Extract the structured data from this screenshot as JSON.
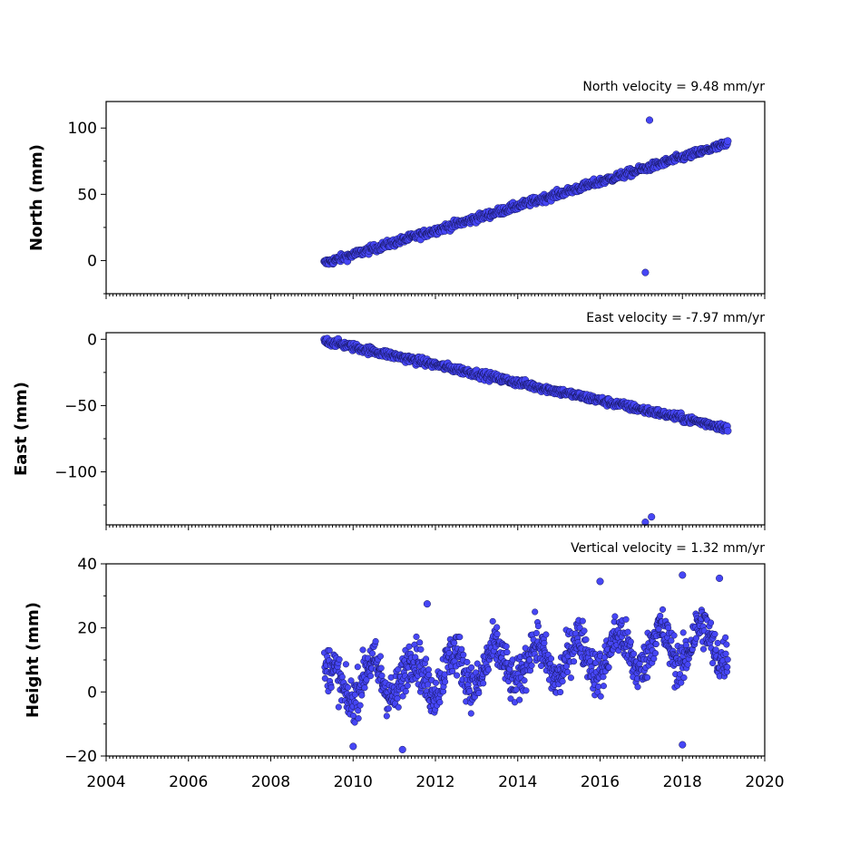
{
  "chart_data": [
    {
      "type": "scatter",
      "title": "North velocity = 9.48 mm/yr",
      "ylabel": "North (mm)",
      "xlim": [
        2004,
        2020
      ],
      "ylim": [
        -25,
        120
      ],
      "yticks": [
        0,
        50,
        100
      ],
      "ytick_labels": [
        "0",
        "50",
        "100"
      ],
      "velocity_mm_per_yr": 9.48,
      "start": [
        2009.3,
        -2
      ],
      "end": [
        2019.1,
        88
      ],
      "noise": 2,
      "outliers": [
        [
          2017.2,
          106
        ],
        [
          2017.1,
          -9
        ]
      ],
      "color": "#4646f5"
    },
    {
      "type": "scatter",
      "title": "East velocity = -7.97 mm/yr",
      "ylabel": "East (mm)",
      "xlim": [
        2004,
        2020
      ],
      "ylim": [
        -140,
        5
      ],
      "yticks": [
        0,
        -50,
        -100
      ],
      "ytick_labels": [
        "0",
        "−50",
        "−100"
      ],
      "velocity_mm_per_yr": -7.97,
      "start": [
        2009.3,
        -1
      ],
      "end": [
        2019.1,
        -67
      ],
      "noise": 2,
      "outliers": [
        [
          2017.1,
          -138
        ],
        [
          2017.25,
          -134
        ]
      ],
      "color": "#4646f5"
    },
    {
      "type": "scatter",
      "title": "Vertical velocity = 1.32 mm/yr",
      "ylabel": "Height (mm)",
      "xlim": [
        2004,
        2020
      ],
      "ylim": [
        -20,
        40
      ],
      "yticks": [
        -20,
        0,
        20,
        40
      ],
      "ytick_labels": [
        "−20",
        "0",
        "20",
        "40"
      ],
      "velocity_mm_per_yr": 1.32,
      "start": [
        2009.3,
        2
      ],
      "end": [
        2019.1,
        16
      ],
      "noise": 5,
      "seasonal_amplitude_mm": 6,
      "outliers": [
        [
          2011.8,
          27.5
        ],
        [
          2016.0,
          34.5
        ],
        [
          2018.0,
          36.5
        ],
        [
          2018.9,
          35.5
        ],
        [
          2018.0,
          -16.5
        ],
        [
          2011.2,
          -18
        ],
        [
          2010.0,
          -17
        ]
      ],
      "color": "#4646f5"
    }
  ],
  "xaxis": {
    "ticks": [
      2004,
      2006,
      2008,
      2010,
      2012,
      2014,
      2016,
      2018,
      2020
    ],
    "tick_labels": [
      "2004",
      "2006",
      "2008",
      "2010",
      "2012",
      "2014",
      "2016",
      "2018",
      "2020"
    ]
  }
}
